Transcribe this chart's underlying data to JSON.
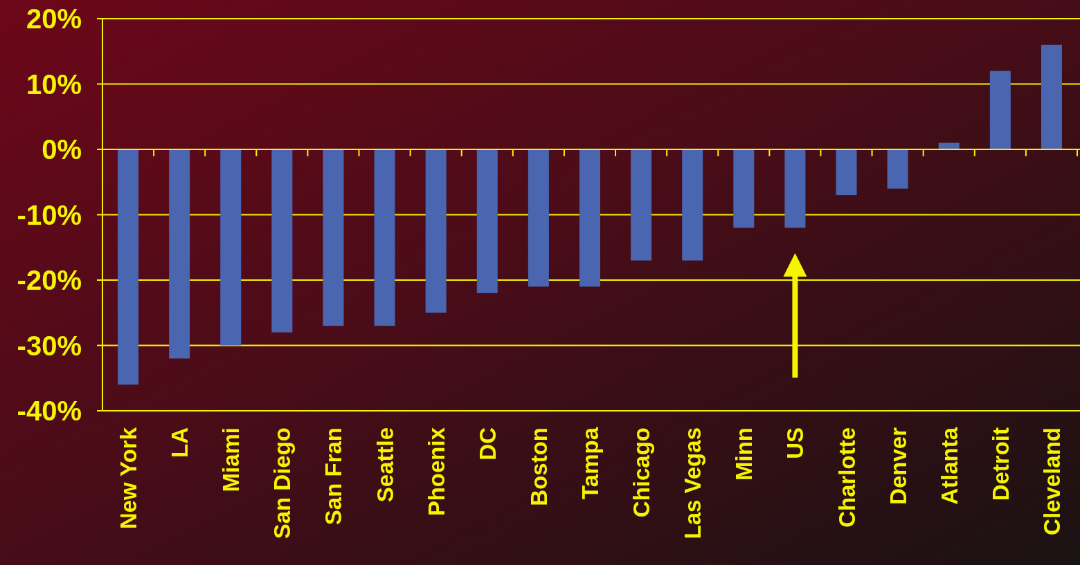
{
  "chart_data": {
    "type": "bar",
    "categories": [
      "New York",
      "LA",
      "Miami",
      "San Diego",
      "San Fran",
      "Seattle",
      "Phoenix",
      "DC",
      "Boston",
      "Tampa",
      "Chicago",
      "Las Vegas",
      "Minn",
      "US",
      "Charlotte",
      "Denver",
      "Atlanta",
      "Detroit",
      "Cleveland"
    ],
    "values": [
      -36,
      -32,
      -30,
      -28,
      -27,
      -27,
      -25,
      -22,
      -21,
      -21,
      -17,
      -17,
      -12,
      -12,
      -7,
      -6,
      1,
      12,
      16
    ],
    "color": "#4a66b0",
    "ylim": [
      -40,
      20
    ],
    "yticks": [
      {
        "value": -40,
        "label": "-40%"
      },
      {
        "value": -30,
        "label": "-30%"
      },
      {
        "value": -20,
        "label": "-20%"
      },
      {
        "value": -10,
        "label": "-10%"
      },
      {
        "value": 0,
        "label": "0%"
      },
      {
        "value": 10,
        "label": "10%"
      },
      {
        "value": 20,
        "label": "20%"
      }
    ],
    "grid": "y"
  }
}
